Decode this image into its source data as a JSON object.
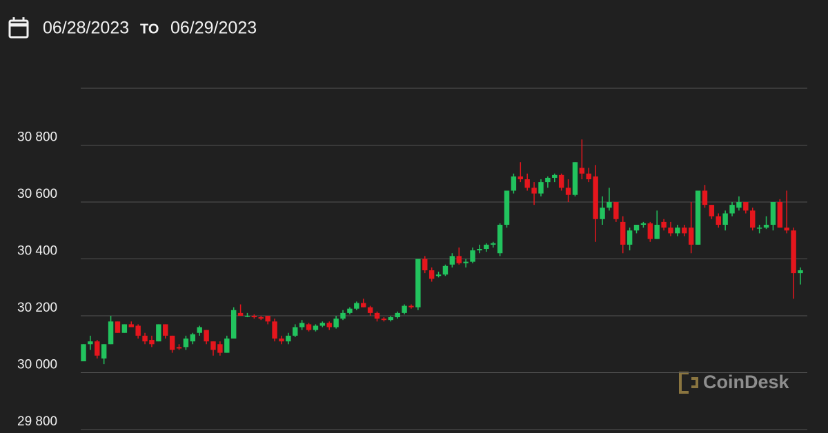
{
  "header": {
    "from": "06/28/2023",
    "separator": "TO",
    "to": "06/29/2023"
  },
  "chart_data": {
    "type": "candlestick",
    "ylim": [
      29800,
      31000
    ],
    "yticks": [
      {
        "value": 29800,
        "label": "29 800"
      },
      {
        "value": 30000,
        "label": "30 000"
      },
      {
        "value": 30200,
        "label": "30 200"
      },
      {
        "value": 30400,
        "label": "30 400"
      },
      {
        "value": 30600,
        "label": "30 600"
      },
      {
        "value": 30800,
        "label": "30 800"
      }
    ],
    "grid": true,
    "up_color": "#22c35e",
    "down_color": "#e5161d",
    "ohlc": [
      [
        30040,
        30100,
        30040,
        30100
      ],
      [
        30100,
        30130,
        30080,
        30110
      ],
      [
        30110,
        30115,
        30050,
        30060
      ],
      [
        30050,
        30100,
        30030,
        30100
      ],
      [
        30100,
        30200,
        30100,
        30180
      ],
      [
        30180,
        30180,
        30140,
        30140
      ],
      [
        30140,
        30170,
        30140,
        30170
      ],
      [
        30170,
        30180,
        30160,
        30160
      ],
      [
        30165,
        30170,
        30120,
        30130
      ],
      [
        30130,
        30140,
        30100,
        30110
      ],
      [
        30115,
        30130,
        30090,
        30100
      ],
      [
        30110,
        30170,
        30110,
        30170
      ],
      [
        30170,
        30170,
        30120,
        30130
      ],
      [
        30130,
        30130,
        30070,
        30080
      ],
      [
        30090,
        30100,
        30080,
        30085
      ],
      [
        30090,
        30130,
        30080,
        30120
      ],
      [
        30110,
        30140,
        30100,
        30135
      ],
      [
        30140,
        30165,
        30130,
        30160
      ],
      [
        30150,
        30150,
        30100,
        30110
      ],
      [
        30110,
        30110,
        30060,
        30080
      ],
      [
        30100,
        30110,
        30060,
        30070
      ],
      [
        30070,
        30130,
        30070,
        30120
      ],
      [
        30120,
        30230,
        30120,
        30220
      ],
      [
        30210,
        30240,
        30200,
        30200
      ],
      [
        30200,
        30210,
        30195,
        30200
      ],
      [
        30200,
        30205,
        30190,
        30195
      ],
      [
        30195,
        30200,
        30185,
        30190
      ],
      [
        30200,
        30200,
        30170,
        30180
      ],
      [
        30180,
        30190,
        30110,
        30120
      ],
      [
        30120,
        30130,
        30100,
        30110
      ],
      [
        30110,
        30140,
        30100,
        30130
      ],
      [
        30130,
        30170,
        30125,
        30160
      ],
      [
        30160,
        30185,
        30150,
        30175
      ],
      [
        30170,
        30175,
        30145,
        30150
      ],
      [
        30150,
        30170,
        30145,
        30165
      ],
      [
        30165,
        30180,
        30160,
        30175
      ],
      [
        30175,
        30180,
        30150,
        30160
      ],
      [
        30160,
        30200,
        30155,
        30190
      ],
      [
        30190,
        30220,
        30185,
        30210
      ],
      [
        30210,
        30230,
        30205,
        30225
      ],
      [
        30225,
        30250,
        30220,
        30245
      ],
      [
        30245,
        30260,
        30230,
        30230
      ],
      [
        30230,
        30235,
        30200,
        30210
      ],
      [
        30210,
        30215,
        30180,
        30190
      ],
      [
        30190,
        30195,
        30180,
        30185
      ],
      [
        30185,
        30200,
        30180,
        30195
      ],
      [
        30195,
        30215,
        30190,
        30210
      ],
      [
        30210,
        30240,
        30205,
        30235
      ],
      [
        30235,
        30240,
        30225,
        30230
      ],
      [
        30230,
        30400,
        30220,
        30400
      ],
      [
        30400,
        30410,
        30350,
        30360
      ],
      [
        30360,
        30370,
        30320,
        30330
      ],
      [
        30340,
        30355,
        30335,
        30345
      ],
      [
        30345,
        30380,
        30340,
        30375
      ],
      [
        30380,
        30420,
        30370,
        30410
      ],
      [
        30410,
        30440,
        30380,
        30385
      ],
      [
        30385,
        30400,
        30370,
        30390
      ],
      [
        30390,
        30440,
        30385,
        30430
      ],
      [
        30430,
        30450,
        30420,
        30435
      ],
      [
        30435,
        30455,
        30425,
        30450
      ],
      [
        30450,
        30460,
        30440,
        30455
      ],
      [
        30420,
        30525,
        30410,
        30520
      ],
      [
        30520,
        30640,
        30510,
        30640
      ],
      [
        30640,
        30700,
        30630,
        30690
      ],
      [
        30690,
        30740,
        30670,
        30680
      ],
      [
        30680,
        30700,
        30640,
        30650
      ],
      [
        30650,
        30670,
        30590,
        30630
      ],
      [
        30630,
        30680,
        30620,
        30670
      ],
      [
        30670,
        30690,
        30650,
        30685
      ],
      [
        30685,
        30700,
        30670,
        30695
      ],
      [
        30695,
        30700,
        30640,
        30650
      ],
      [
        30650,
        30680,
        30600,
        30625
      ],
      [
        30625,
        30740,
        30620,
        30740
      ],
      [
        30720,
        30820,
        30680,
        30700
      ],
      [
        30700,
        30720,
        30670,
        30680
      ],
      [
        30690,
        30730,
        30460,
        30540
      ],
      [
        30540,
        30620,
        30520,
        30580
      ],
      [
        30580,
        30650,
        30570,
        30600
      ],
      [
        30600,
        30600,
        30530,
        30540
      ],
      [
        30530,
        30550,
        30420,
        30450
      ],
      [
        30450,
        30510,
        30430,
        30500
      ],
      [
        30500,
        30520,
        30490,
        30520
      ],
      [
        30520,
        30530,
        30510,
        30525
      ],
      [
        30525,
        30530,
        30460,
        30470
      ],
      [
        30470,
        30570,
        30470,
        30520
      ],
      [
        30530,
        30540,
        30500,
        30510
      ],
      [
        30510,
        30530,
        30480,
        30490
      ],
      [
        30490,
        30520,
        30480,
        30510
      ],
      [
        30510,
        30520,
        30480,
        30490
      ],
      [
        30510,
        30600,
        30420,
        30450
      ],
      [
        30450,
        30640,
        30450,
        30640
      ],
      [
        30640,
        30660,
        30580,
        30590
      ],
      [
        30590,
        30590,
        30540,
        30550
      ],
      [
        30550,
        30560,
        30510,
        30520
      ],
      [
        30520,
        30570,
        30500,
        30560
      ],
      [
        30560,
        30600,
        30550,
        30590
      ],
      [
        30580,
        30620,
        30570,
        30600
      ],
      [
        30600,
        30600,
        30560,
        30570
      ],
      [
        30570,
        30580,
        30500,
        30510
      ],
      [
        30510,
        30520,
        30490,
        30510
      ],
      [
        30510,
        30550,
        30505,
        30520
      ],
      [
        30520,
        30600,
        30500,
        30600
      ],
      [
        30600,
        30610,
        30510,
        30510
      ],
      [
        30510,
        30640,
        30490,
        30500
      ],
      [
        30500,
        30510,
        30260,
        30350
      ],
      [
        30350,
        30370,
        30310,
        30360
      ]
    ],
    "watermark": "CoinDesk"
  }
}
